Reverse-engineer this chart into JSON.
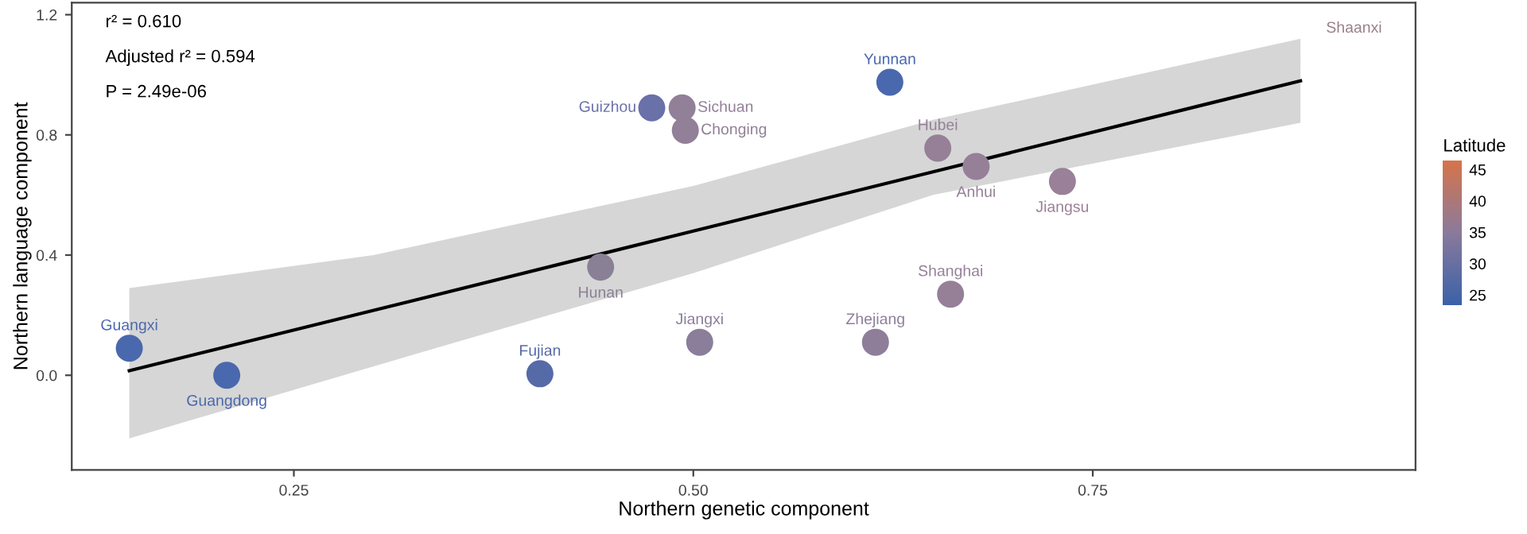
{
  "chart_data": {
    "type": "scatter",
    "xlabel": "Northern genetic component",
    "ylabel": "Northern language component",
    "clabel": "Latitude",
    "xlim": [
      0.111,
      0.952
    ],
    "ylim": [
      -0.315,
      1.24
    ],
    "xticks": [
      {
        "value": 0.25,
        "label": "0.25"
      },
      {
        "value": 0.5,
        "label": "0.50"
      },
      {
        "value": 0.75,
        "label": "0.75"
      }
    ],
    "yticks": [
      {
        "value": 0.0,
        "label": "0.0"
      },
      0.4,
      0.8,
      1.2
    ],
    "clim": [
      23.5,
      46.5
    ],
    "cticks": [
      25,
      30,
      35,
      40,
      45
    ],
    "grid": false,
    "series": [
      {
        "marker": "circle",
        "x": [
          0.147,
          0.208,
          0.404,
          0.442,
          0.504,
          0.474,
          0.493,
          0.495,
          0.623,
          0.653,
          0.677,
          0.731,
          0.661,
          0.614
        ],
        "values": [
          0.09,
          0.0,
          0.005,
          0.36,
          0.11,
          0.89,
          0.89,
          0.815,
          0.975,
          0.756,
          0.695,
          0.645,
          0.27,
          0.11
        ],
        "colors": [
          "#4a68ad",
          "#4a68ad",
          "#566aa8",
          "#8a8096",
          "#8a7e9a",
          "#6a70a8",
          "#927f98",
          "#927f98",
          "#4a68ad",
          "#958098",
          "#958098",
          "#9a8098",
          "#958098",
          "#8e7e9a"
        ]
      },
      {
        "type": "line",
        "color": "#000000",
        "x": [
          0.147,
          0.3,
          0.5,
          0.65,
          0.88
        ],
        "values": [
          0.015,
          0.216,
          0.48,
          0.677,
          0.98
        ],
        "lower": [
          -0.21,
          0.03,
          0.34,
          0.6,
          0.84
        ],
        "upper": [
          0.29,
          0.4,
          0.63,
          0.85,
          1.12
        ]
      }
    ],
    "annotations": [
      "r² = 0.610",
      "Adjusted r² = 0.594",
      "P = 2.49e-06",
      {
        "text": "Guangxi",
        "x": 0.147,
        "y": 0.09
      },
      {
        "text": "Guangdong",
        "x": 0.208,
        "y": 0.0
      },
      {
        "text": "Fujian",
        "x": 0.404,
        "y": 0.005
      },
      {
        "text": "Hunan",
        "x": 0.442,
        "y": 0.36
      },
      {
        "text": "Jiangxi",
        "x": 0.504,
        "y": 0.11
      },
      {
        "text": "Guizhou",
        "x": 0.474,
        "y": 0.89
      },
      {
        "text": "Sichuan",
        "x": 0.493,
        "y": 0.89
      },
      {
        "text": "Chonging",
        "x": 0.495,
        "y": 0.815
      },
      {
        "text": "Yunnan",
        "x": 0.623,
        "y": 0.975
      },
      {
        "text": "Hubei",
        "x": 0.653,
        "y": 0.756
      },
      {
        "text": "Anhui",
        "x": 0.677,
        "y": 0.695
      },
      {
        "text": "Jiangsu",
        "x": 0.731,
        "y": 0.645
      },
      {
        "text": "Shanghai",
        "x": 0.661,
        "y": 0.27
      },
      {
        "text": "Zhejiang",
        "x": 0.614,
        "y": 0.11
      },
      "Shaanxi"
    ]
  }
}
